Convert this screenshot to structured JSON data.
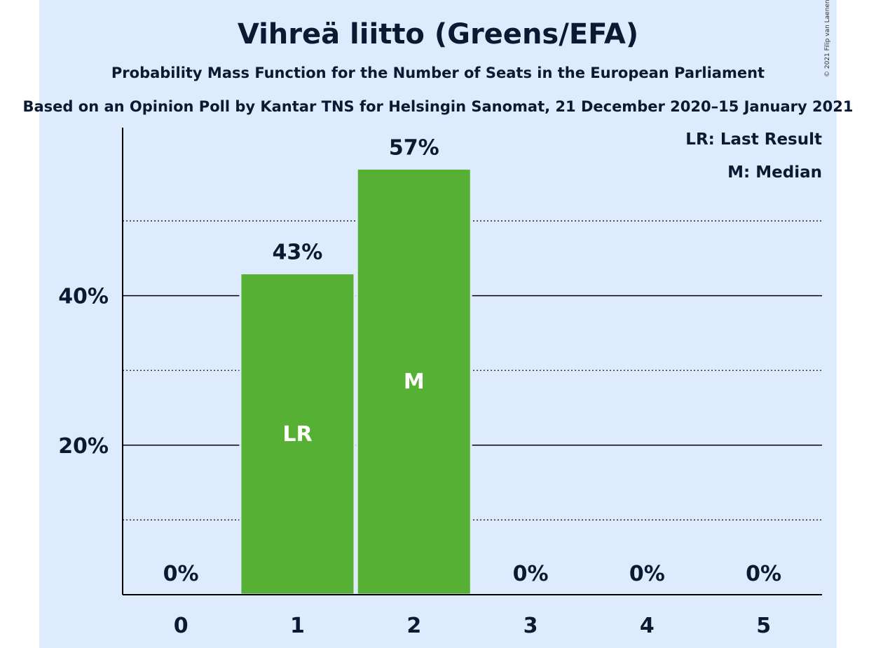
{
  "header": {
    "title": "Vihreä liitto (Greens/EFA)",
    "subtitle": "Probability Mass Function for the Number of Seats in the European Parliament",
    "source": "Based on an Opinion Poll by Kantar TNS for Helsingin Sanomat, 21 December 2020–15 January 2021",
    "copyright": "© 2021 Filip van Laenen"
  },
  "legend": {
    "lr": "LR: Last Result",
    "m": "M: Median"
  },
  "colors": {
    "bar": "#55b034",
    "background": "#deebfc",
    "text": "#0b1a33"
  },
  "chart_data": {
    "type": "bar",
    "categories": [
      "0",
      "1",
      "2",
      "3",
      "4",
      "5"
    ],
    "values": [
      0,
      43,
      57,
      0,
      0,
      0
    ],
    "value_labels": [
      "0%",
      "43%",
      "57%",
      "0%",
      "0%",
      "0%"
    ],
    "bar_markers": [
      "",
      "LR",
      "M",
      "",
      "",
      ""
    ],
    "ylim": [
      0,
      62.5
    ],
    "yticks": [
      20,
      40
    ],
    "ytick_labels": [
      "20%",
      "40%"
    ],
    "minor_gridlines": [
      10,
      30,
      50
    ],
    "grid": true,
    "legend_position": "top-right"
  }
}
